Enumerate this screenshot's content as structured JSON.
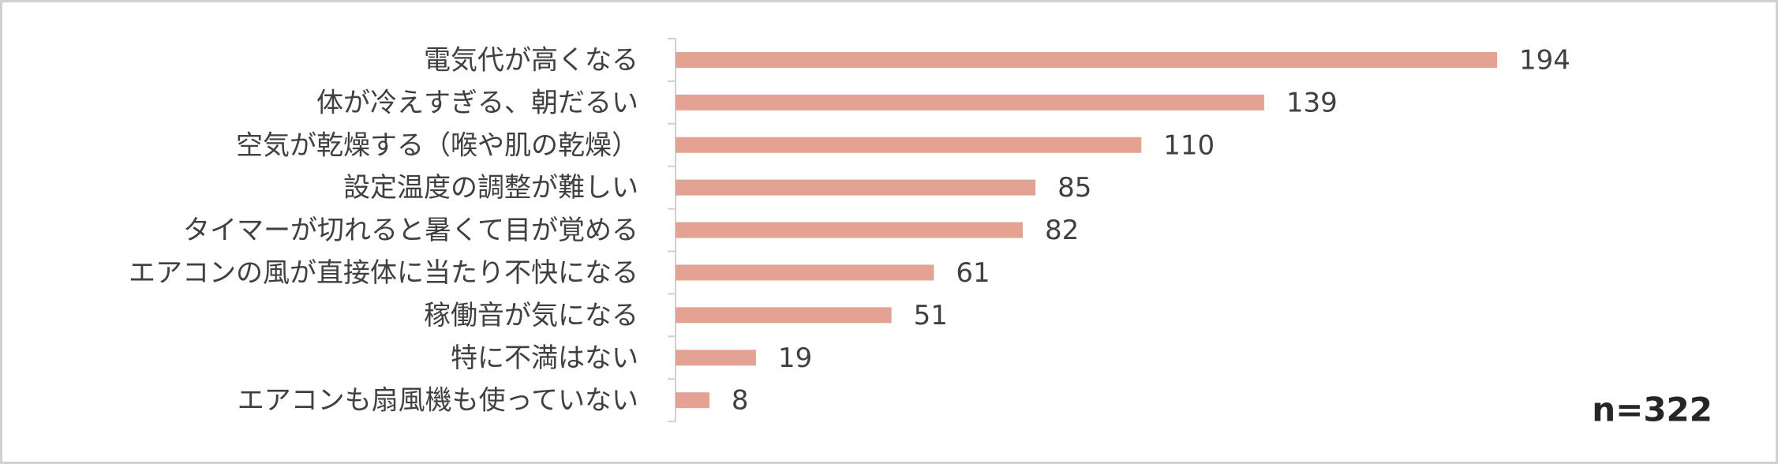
{
  "chart_data": {
    "type": "barh",
    "categories": [
      "電気代が高くなる",
      "体が冷えすぎる、朝だるい",
      "空気が乾燥する（喉や肌の乾燥）",
      "設定温度の調整が難しい",
      "タイマーが切れると暑くて目が覚める",
      "エアコンの風が直接体に当たり不快になる",
      "稼働音が気になる",
      "特に不満はない",
      "エアコンも扇風機も使っていない"
    ],
    "values": [
      194,
      139,
      110,
      85,
      82,
      61,
      51,
      19,
      8
    ],
    "color": "#e4a392",
    "annotation": "n=322"
  }
}
